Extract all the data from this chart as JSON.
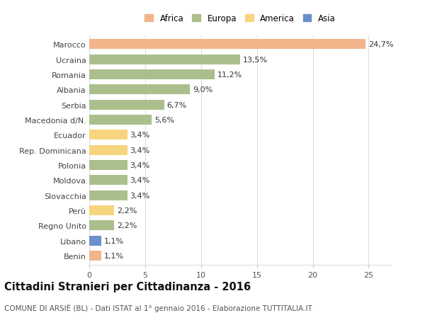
{
  "countries": [
    "Marocco",
    "Ucraina",
    "Romania",
    "Albania",
    "Serbia",
    "Macedonia d/N.",
    "Ecuador",
    "Rep. Dominicana",
    "Polonia",
    "Moldova",
    "Slovacchia",
    "Perù",
    "Regno Unito",
    "Libano",
    "Benin"
  ],
  "values": [
    24.7,
    13.5,
    11.2,
    9.0,
    6.7,
    5.6,
    3.4,
    3.4,
    3.4,
    3.4,
    3.4,
    2.2,
    2.2,
    1.1,
    1.1
  ],
  "labels": [
    "24,7%",
    "13,5%",
    "11,2%",
    "9,0%",
    "6,7%",
    "5,6%",
    "3,4%",
    "3,4%",
    "3,4%",
    "3,4%",
    "3,4%",
    "2,2%",
    "2,2%",
    "1,1%",
    "1,1%"
  ],
  "colors": [
    "#F2B48A",
    "#ABBF8C",
    "#ABBF8C",
    "#ABBF8C",
    "#ABBF8C",
    "#ABBF8C",
    "#F7D57E",
    "#F7D57E",
    "#ABBF8C",
    "#ABBF8C",
    "#ABBF8C",
    "#F7D57E",
    "#ABBF8C",
    "#6B8FCC",
    "#F2B48A"
  ],
  "legend": [
    {
      "label": "Africa",
      "color": "#F2B48A"
    },
    {
      "label": "Europa",
      "color": "#ABBF8C"
    },
    {
      "label": "America",
      "color": "#F7D57E"
    },
    {
      "label": "Asia",
      "color": "#6B8FCC"
    }
  ],
  "xlim": [
    0,
    27
  ],
  "xticks": [
    0,
    5,
    10,
    15,
    20,
    25
  ],
  "title": "Cittadini Stranieri per Cittadinanza - 2016",
  "subtitle": "COMUNE DI ARSIÈ (BL) - Dati ISTAT al 1° gennaio 2016 - Elaborazione TUTTITALIA.IT",
  "background_color": "#FFFFFF",
  "grid_color": "#DDDDDD",
  "bar_height": 0.65,
  "label_fontsize": 8,
  "value_fontsize": 8,
  "title_fontsize": 10.5,
  "subtitle_fontsize": 7.5
}
